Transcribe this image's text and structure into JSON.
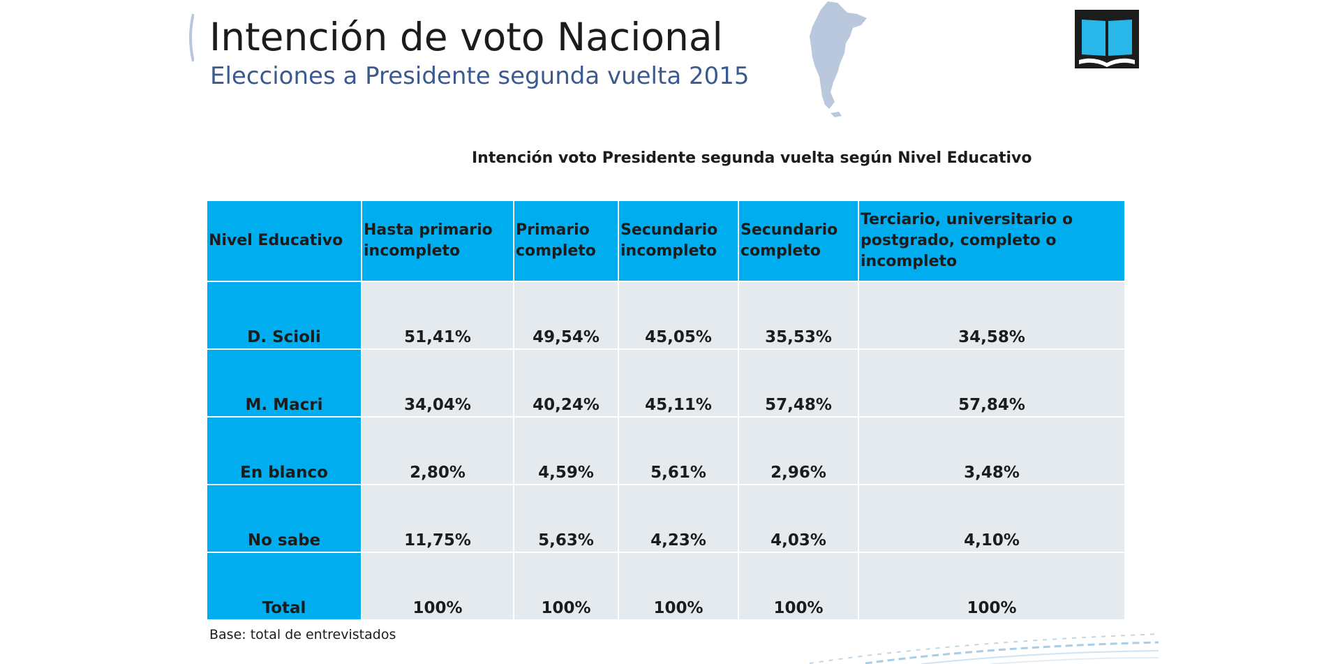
{
  "slide": {
    "title": "Intención de voto Nacional",
    "subtitle": "Elecciones a Presidente segunda vuelta 2015",
    "table_title": "Intención voto Presidente segunda vuelta según Nivel Educativo",
    "footnote": "Base: total de entrevistados",
    "colors": {
      "header_bg": "#00aeef",
      "cell_bg": "#e5eaef",
      "subtitle": "#3b5a8f"
    },
    "icons": [
      "argentina-map-icon",
      "book-logo-icon"
    ]
  },
  "table": {
    "headers": [
      "Nivel Educativo",
      "Hasta primario incompleto",
      "Primario completo",
      "Secundario incompleto",
      "Secundario completo",
      "Terciario, universitario o postgrado, completo o incompleto"
    ],
    "rows": [
      {
        "label": "D. Scioli",
        "values": [
          "51,41%",
          "49,54%",
          "45,05%",
          "35,53%",
          "34,58%"
        ]
      },
      {
        "label": "M. Macri",
        "values": [
          "34,04%",
          "40,24%",
          "45,11%",
          "57,48%",
          "57,84%"
        ]
      },
      {
        "label": "En blanco",
        "values": [
          "2,80%",
          "4,59%",
          "5,61%",
          "2,96%",
          "3,48%"
        ]
      },
      {
        "label": "No sabe",
        "values": [
          "11,75%",
          "5,63%",
          "4,23%",
          "4,03%",
          "4,10%"
        ]
      },
      {
        "label": "Total",
        "values": [
          "100%",
          "100%",
          "100%",
          "100%",
          "100%"
        ]
      }
    ]
  }
}
